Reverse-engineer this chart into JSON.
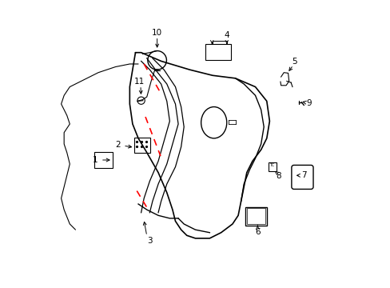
{
  "background_color": "#ffffff",
  "line_color": "#000000",
  "red_color": "#ff0000",
  "figsize": [
    4.89,
    3.6
  ],
  "dpi": 100,
  "label_fontsize": 7.5
}
